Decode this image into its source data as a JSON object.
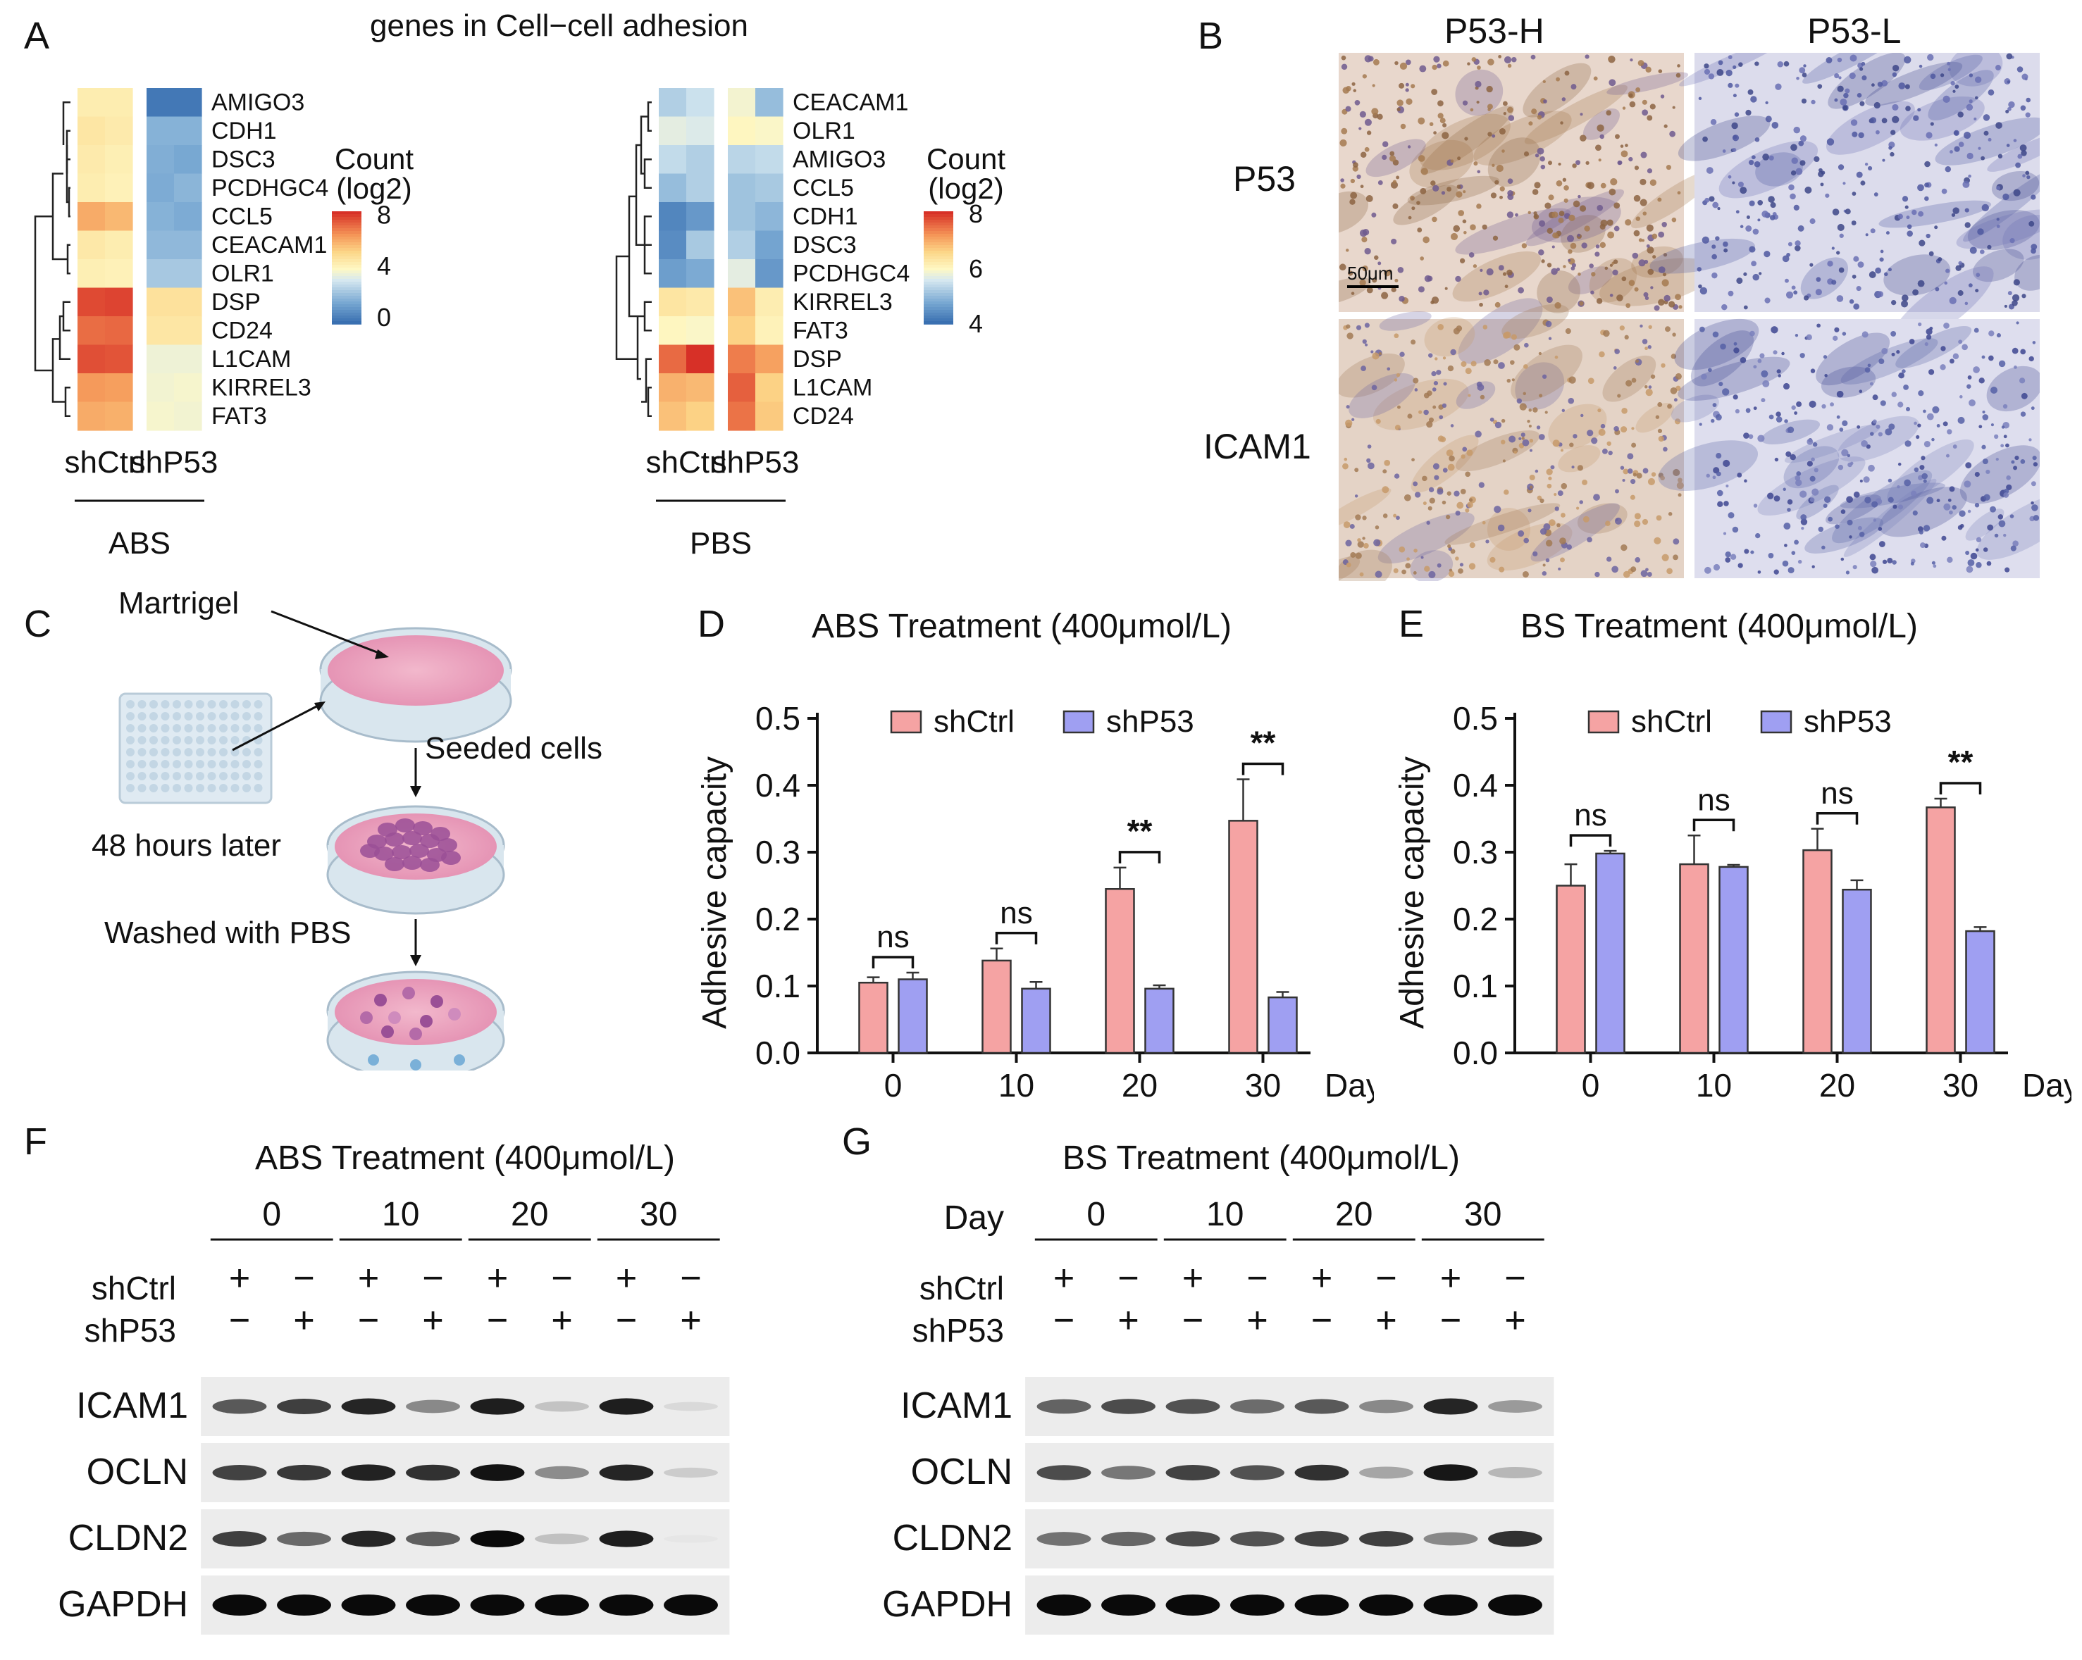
{
  "panels": {
    "A": "A",
    "B": "B",
    "C": "C",
    "D": "D",
    "E": "E",
    "F": "F",
    "G": "G"
  },
  "panelA": {
    "title": "genes in Cell−cell adhesion",
    "left": {
      "genes": [
        "AMIGO3",
        "CDH1",
        "DSC3",
        "PCDHGC4",
        "CCL5",
        "CEACAM1",
        "OLR1",
        "DSP",
        "CD24",
        "L1CAM",
        "KIRREL3",
        "FAT3"
      ],
      "values": [
        [
          4.5,
          4.5,
          -0.5,
          -0.5
        ],
        [
          4.8,
          4.6,
          1.3,
          1.3
        ],
        [
          4.6,
          4.4,
          1.2,
          1.0
        ],
        [
          4.5,
          4.3,
          1.1,
          1.4
        ],
        [
          6.5,
          6.2,
          1.3,
          1.1
        ],
        [
          4.7,
          4.5,
          1.5,
          1.5
        ],
        [
          4.4,
          4.3,
          2.0,
          2.0
        ],
        [
          8.5,
          8.6,
          5.0,
          5.0
        ],
        [
          7.8,
          7.9,
          4.8,
          4.8
        ],
        [
          8.4,
          8.3,
          3.6,
          3.6
        ],
        [
          6.9,
          6.8,
          3.7,
          3.8
        ],
        [
          6.5,
          6.4,
          3.8,
          3.7
        ]
      ],
      "scale": {
        "min": -1,
        "max": 9,
        "ticks": [
          "8",
          "4",
          "0"
        ],
        "tick_values": [
          8,
          4,
          0
        ]
      },
      "legend_title": [
        "Count",
        "(log2)"
      ],
      "col_labels": [
        "shCtrl",
        "shP53"
      ],
      "group_label": "ABS"
    },
    "right": {
      "genes": [
        "CEACAM1",
        "OLR1",
        "AMIGO3",
        "CCL5",
        "CDH1",
        "DSC3",
        "PCDHGC4",
        "KIRREL3",
        "FAT3",
        "DSP",
        "L1CAM",
        "CD24"
      ],
      "values": [
        [
          5.2,
          5.5,
          6.0,
          4.9
        ],
        [
          5.8,
          5.7,
          6.2,
          6.1
        ],
        [
          5.4,
          5.2,
          5.3,
          5.4
        ],
        [
          4.9,
          5.2,
          5.0,
          5.1
        ],
        [
          4.0,
          4.3,
          5.0,
          4.8
        ],
        [
          4.1,
          5.1,
          5.2,
          4.5
        ],
        [
          4.4,
          4.6,
          5.8,
          4.3
        ],
        [
          6.6,
          6.5,
          7.2,
          6.4
        ],
        [
          6.2,
          6.1,
          7.0,
          6.3
        ],
        [
          8.2,
          8.8,
          8.0,
          7.6
        ],
        [
          7.4,
          7.3,
          8.3,
          7.0
        ],
        [
          7.2,
          7.0,
          8.1,
          7.1
        ]
      ],
      "scale": {
        "min": 3.5,
        "max": 8.8,
        "ticks": [
          "8",
          "6",
          "4"
        ],
        "tick_values": [
          8,
          6,
          4
        ]
      },
      "legend_title": [
        "Count",
        "(log2)"
      ],
      "col_labels": [
        "shCtrl",
        "shP53"
      ],
      "group_label": "PBS"
    }
  },
  "panelB": {
    "col_labels": [
      "P53-H",
      "P53-L"
    ],
    "row_labels": [
      "P53",
      "ICAM1"
    ],
    "scale_bar": "50μm"
  },
  "panelC": {
    "martrigel": "Martrigel",
    "seeded": "Seeded cells",
    "hours": "48 hours later",
    "washed": "Washed with PBS"
  },
  "chart_data": [
    {
      "type": "bar",
      "title": "ABS Treatment (400μmol/L)",
      "ylabel": "Adhesive capacity",
      "xlabel": "Day",
      "categories": [
        "0",
        "10",
        "20",
        "30"
      ],
      "ylim": [
        0,
        0.5
      ],
      "yticks": [
        "0.0",
        "0.1",
        "0.2",
        "0.3",
        "0.4",
        "0.5"
      ],
      "series": [
        {
          "name": "shCtrl",
          "values": [
            0.105,
            0.138,
            0.245,
            0.347
          ],
          "errors": [
            0.008,
            0.018,
            0.032,
            0.062
          ]
        },
        {
          "name": "shP53",
          "values": [
            0.11,
            0.096,
            0.096,
            0.083
          ],
          "errors": [
            0.01,
            0.01,
            0.005,
            0.008
          ]
        }
      ],
      "significance": [
        "ns",
        "ns",
        "**",
        "**"
      ],
      "legend_position": "top"
    },
    {
      "type": "bar",
      "title": "BS Treatment (400μmol/L)",
      "ylabel": "Adhesive capacity",
      "xlabel": "Day",
      "categories": [
        "0",
        "10",
        "20",
        "30"
      ],
      "ylim": [
        0,
        0.5
      ],
      "yticks": [
        "0.0",
        "0.1",
        "0.2",
        "0.3",
        "0.4",
        "0.5"
      ],
      "series": [
        {
          "name": "shCtrl",
          "values": [
            0.25,
            0.282,
            0.303,
            0.367
          ],
          "errors": [
            0.032,
            0.043,
            0.032,
            0.013
          ]
        },
        {
          "name": "shP53",
          "values": [
            0.298,
            0.278,
            0.244,
            0.182
          ],
          "errors": [
            0.004,
            0.003,
            0.014,
            0.006
          ]
        }
      ],
      "significance": [
        "ns",
        "ns",
        "ns",
        "**"
      ],
      "legend_position": "top"
    }
  ],
  "panelF": {
    "title": "ABS Treatment (400μmol/L)",
    "days": [
      "0",
      "10",
      "20",
      "30"
    ],
    "row_shctrl": "shCtrl",
    "row_shp53": "shP53",
    "shctrl_signs": [
      "+",
      "−",
      "+",
      "−",
      "+",
      "−",
      "+",
      "−"
    ],
    "shp53_signs": [
      "−",
      "+",
      "−",
      "+",
      "−",
      "+",
      "−",
      "+"
    ],
    "proteins": [
      "ICAM1",
      "OCLN",
      "CLDN2",
      "GAPDH"
    ],
    "intensity": [
      [
        0.78,
        0.86,
        0.93,
        0.62,
        0.95,
        0.35,
        0.95,
        0.2
      ],
      [
        0.85,
        0.88,
        0.94,
        0.9,
        0.98,
        0.6,
        0.93,
        0.3
      ],
      [
        0.86,
        0.73,
        0.93,
        0.76,
        1.0,
        0.36,
        0.95,
        0.08
      ],
      [
        1,
        1,
        1,
        1,
        1,
        1,
        1,
        1
      ]
    ]
  },
  "panelG": {
    "title": "BS Treatment (400μmol/L)",
    "day_label": "Day",
    "days": [
      "0",
      "10",
      "20",
      "30"
    ],
    "row_shctrl": "shCtrl",
    "row_shp53": "shP53",
    "shctrl_signs": [
      "+",
      "−",
      "+",
      "−",
      "+",
      "−",
      "+",
      "−"
    ],
    "shp53_signs": [
      "−",
      "+",
      "−",
      "+",
      "−",
      "+",
      "−",
      "+"
    ],
    "proteins": [
      "ICAM1",
      "OCLN",
      "CLDN2",
      "GAPDH"
    ],
    "intensity": [
      [
        0.75,
        0.82,
        0.8,
        0.72,
        0.78,
        0.62,
        0.93,
        0.55
      ],
      [
        0.82,
        0.68,
        0.85,
        0.8,
        0.9,
        0.5,
        0.97,
        0.42
      ],
      [
        0.7,
        0.74,
        0.82,
        0.8,
        0.85,
        0.86,
        0.62,
        0.9
      ],
      [
        1,
        1,
        1,
        1,
        1,
        1,
        1,
        1
      ]
    ]
  },
  "colors": {
    "shCtrl": "#f5a3a3",
    "shP53": "#9f9ff2",
    "bar_edge": "#333333",
    "stain_brown": "#b88a58",
    "stain_blue": "#5c63a8"
  }
}
